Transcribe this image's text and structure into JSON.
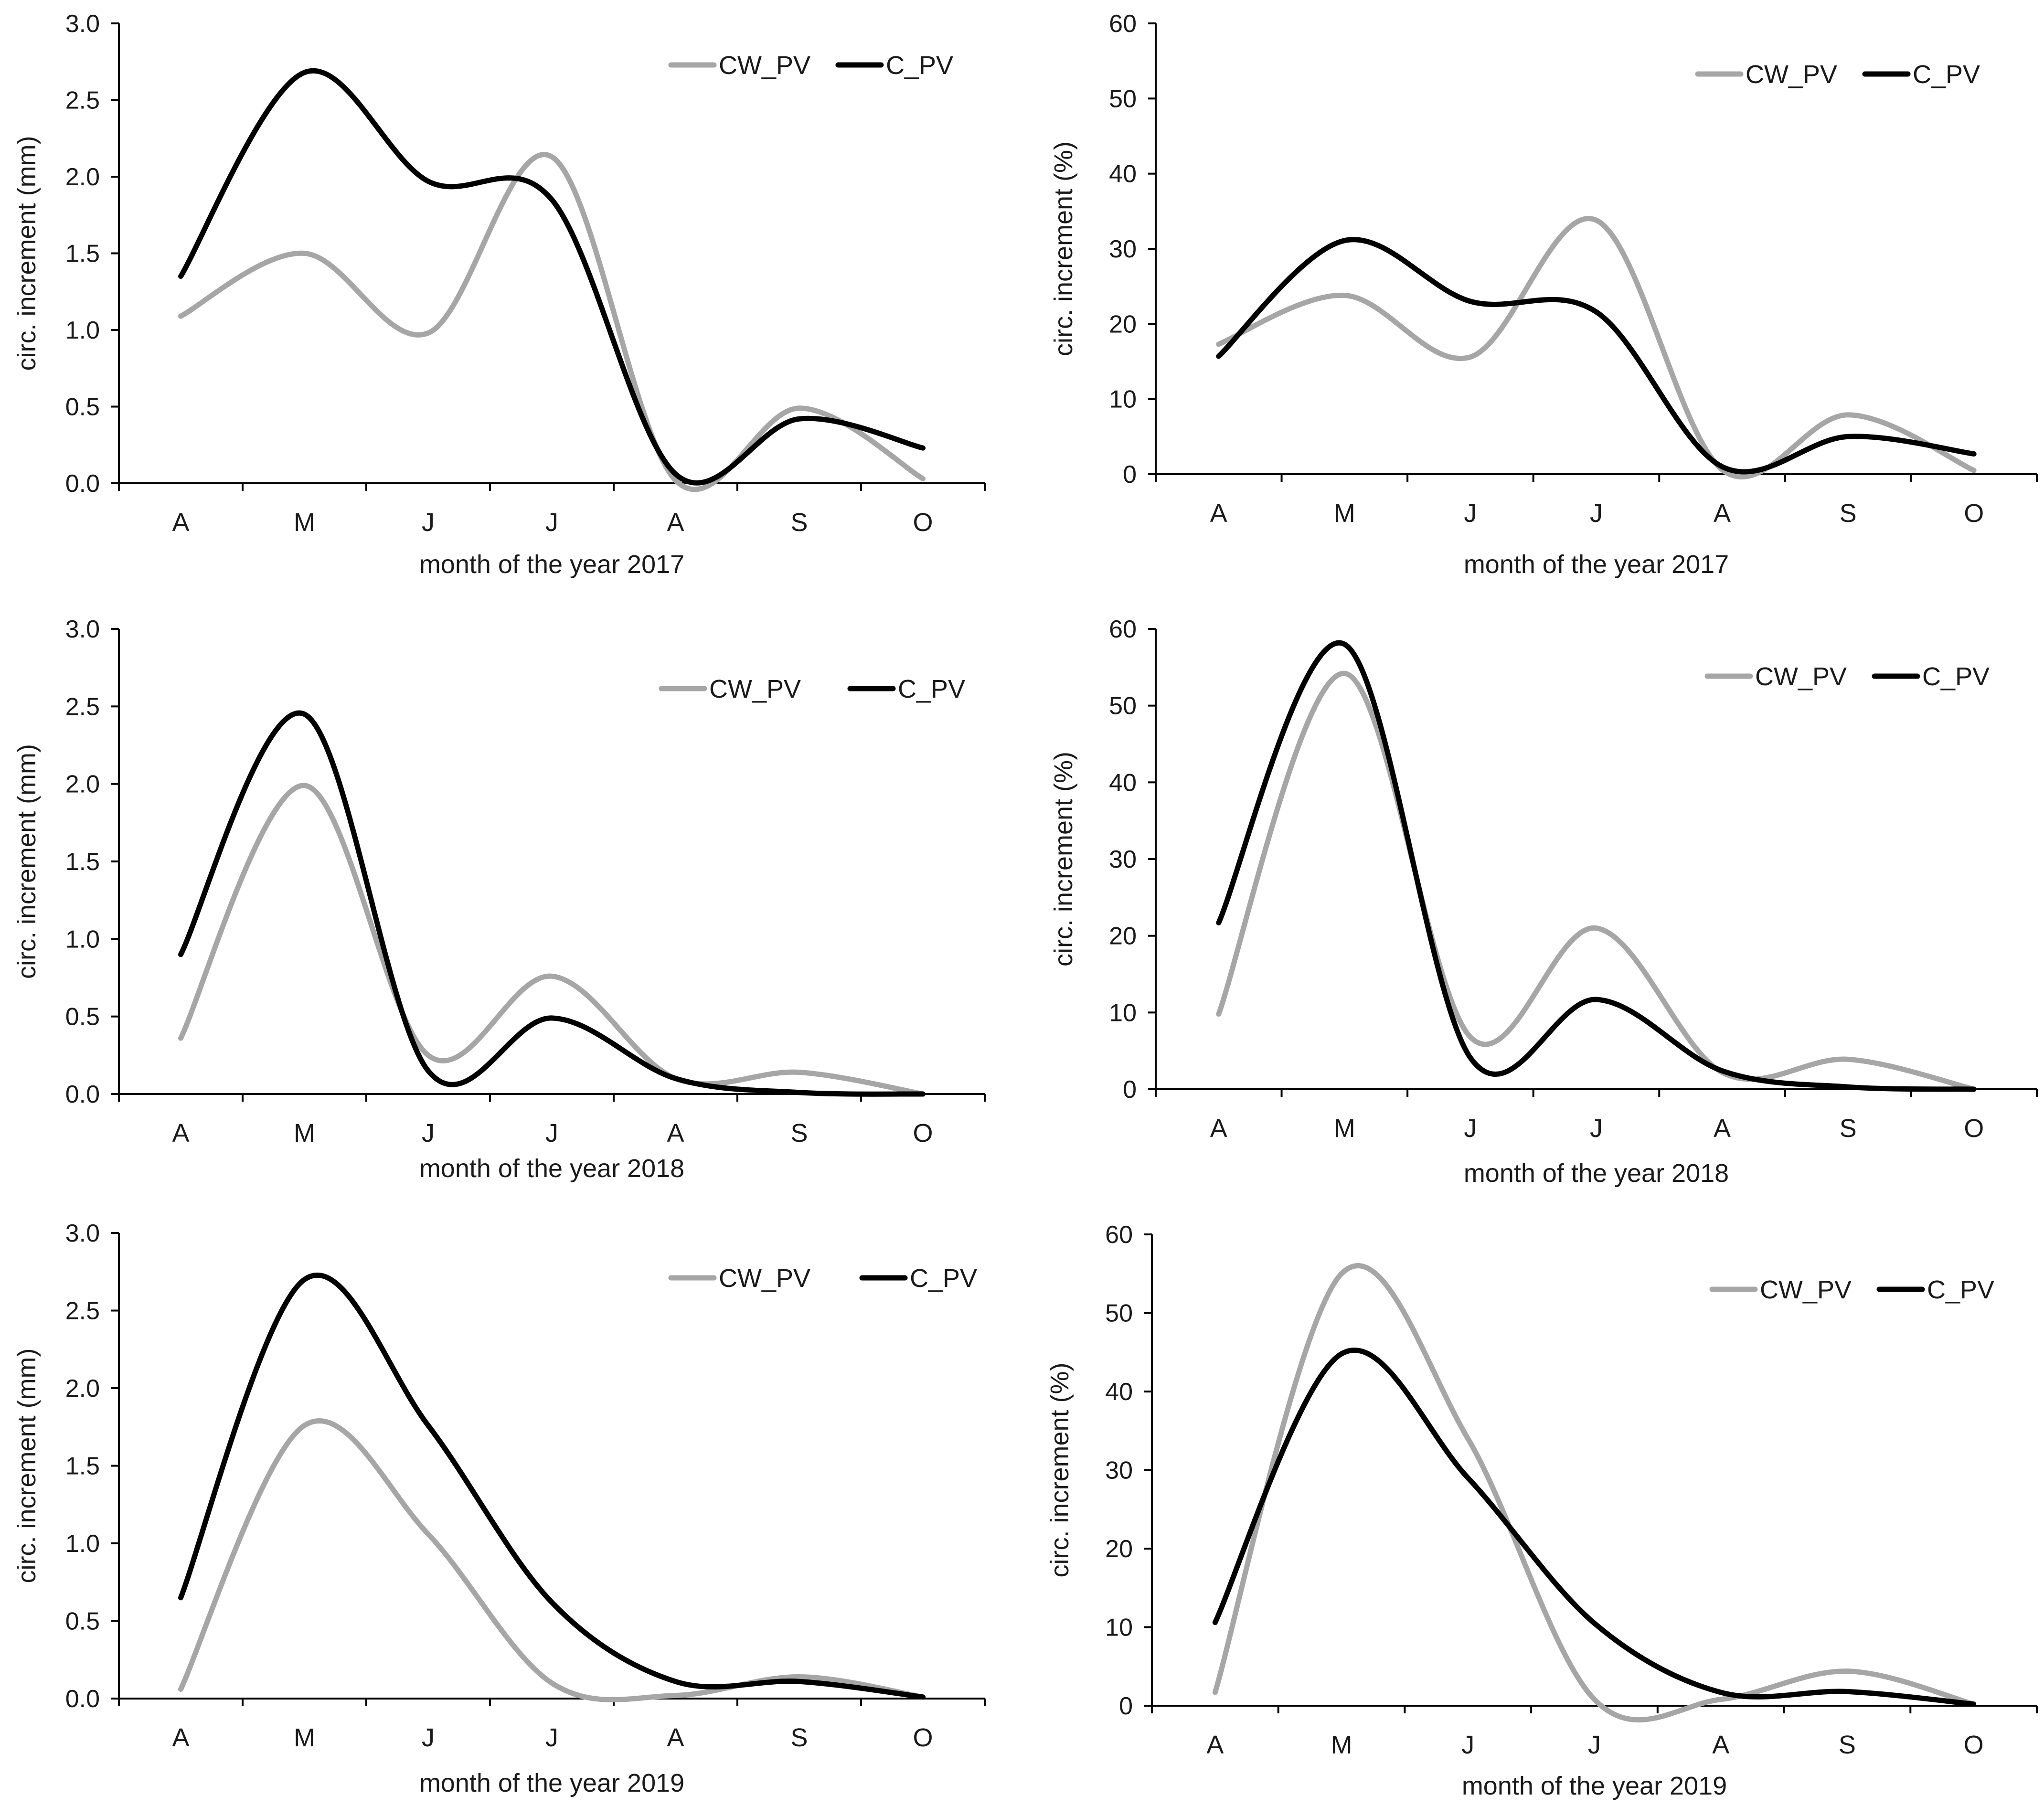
{
  "colors": {
    "CW_PV": "#a6a6a6",
    "C_PV": "#000000"
  },
  "chart_data": [
    {
      "type": "line",
      "title": "",
      "xlabel": "month of the year 2017",
      "ylabel": "circ. increment (mm)",
      "categories": [
        "A",
        "M",
        "J",
        "J",
        "A",
        "S",
        "O"
      ],
      "ylim": [
        0,
        3.0
      ],
      "yticks": [
        "0.0",
        "0.5",
        "1.0",
        "1.5",
        "2.0",
        "2.5",
        "3.0"
      ],
      "series": [
        {
          "name": "CW_PV",
          "values": [
            1.09,
            1.5,
            0.98,
            2.13,
            0.02,
            0.49,
            0.03
          ]
        },
        {
          "name": "C_PV",
          "values": [
            1.35,
            2.68,
            1.97,
            1.85,
            0.06,
            0.42,
            0.23
          ]
        }
      ],
      "legend": "top-right"
    },
    {
      "type": "line",
      "title": "",
      "xlabel": "month of the year 2017",
      "ylabel": "circ. increment (%)",
      "categories": [
        "A",
        "M",
        "J",
        "J",
        "A",
        "S",
        "O"
      ],
      "ylim": [
        0,
        60
      ],
      "yticks": [
        "0",
        "10",
        "20",
        "30",
        "40",
        "50",
        "60"
      ],
      "series": [
        {
          "name": "CW_PV",
          "values": [
            17.3,
            23.8,
            15.6,
            33.8,
            0.6,
            7.9,
            0.5
          ]
        },
        {
          "name": "C_PV",
          "values": [
            15.7,
            31.1,
            23.0,
            21.6,
            1.0,
            5.0,
            2.7
          ]
        }
      ],
      "legend": "top-right"
    },
    {
      "type": "line",
      "title": "",
      "xlabel": "month of the year 2018",
      "ylabel": "circ. increment (mm)",
      "categories": [
        "A",
        "M",
        "J",
        "J",
        "A",
        "S",
        "O"
      ],
      "ylim": [
        0,
        3.0
      ],
      "yticks": [
        "0.0",
        "0.5",
        "1.0",
        "1.5",
        "2.0",
        "2.5",
        "3.0"
      ],
      "series": [
        {
          "name": "CW_PV",
          "values": [
            0.36,
            1.99,
            0.25,
            0.76,
            0.1,
            0.14,
            0.0
          ]
        },
        {
          "name": "C_PV",
          "values": [
            0.9,
            2.45,
            0.15,
            0.49,
            0.1,
            0.01,
            0.0
          ]
        }
      ],
      "legend": "top-right"
    },
    {
      "type": "line",
      "title": "",
      "xlabel": "month of the year 2018",
      "ylabel": "circ. increment (%)",
      "categories": [
        "A",
        "M",
        "J",
        "J",
        "A",
        "S",
        "O"
      ],
      "ylim": [
        0,
        60
      ],
      "yticks": [
        "0",
        "10",
        "20",
        "30",
        "40",
        "50",
        "60"
      ],
      "series": [
        {
          "name": "CW_PV",
          "values": [
            9.8,
            54.2,
            6.8,
            21.0,
            2.2,
            3.9,
            0.0
          ]
        },
        {
          "name": "C_PV",
          "values": [
            21.7,
            58.0,
            4.1,
            11.7,
            2.4,
            0.3,
            0.0
          ]
        }
      ],
      "legend": "top-right"
    },
    {
      "type": "line",
      "title": "",
      "xlabel": "month of the year 2019",
      "ylabel": "circ. increment (mm)",
      "categories": [
        "A",
        "M",
        "J",
        "J",
        "A",
        "S",
        "O"
      ],
      "ylim": [
        0,
        3.0
      ],
      "yticks": [
        "0.0",
        "0.5",
        "1.0",
        "1.5",
        "2.0",
        "2.5",
        "3.0"
      ],
      "series": [
        {
          "name": "CW_PV",
          "values": [
            0.06,
            1.76,
            1.06,
            0.1,
            0.02,
            0.14,
            0.01
          ]
        },
        {
          "name": "C_PV",
          "values": [
            0.65,
            2.7,
            1.76,
            0.62,
            0.11,
            0.11,
            0.01
          ]
        }
      ],
      "legend": "top-right"
    },
    {
      "type": "line",
      "title": "",
      "xlabel": "month of the year 2019",
      "ylabel": "circ. increment (%)",
      "categories": [
        "A",
        "M",
        "J",
        "J",
        "A",
        "S",
        "O"
      ],
      "ylim": [
        0,
        60
      ],
      "yticks": [
        "0",
        "10",
        "20",
        "30",
        "40",
        "50",
        "60"
      ],
      "series": [
        {
          "name": "CW_PV",
          "values": [
            1.7,
            55.0,
            34.0,
            0.8,
            0.8,
            4.4,
            0.2
          ]
        },
        {
          "name": "C_PV",
          "values": [
            10.6,
            44.8,
            29.0,
            10.5,
            1.7,
            1.8,
            0.2
          ]
        }
      ],
      "legend": "top-right"
    }
  ]
}
